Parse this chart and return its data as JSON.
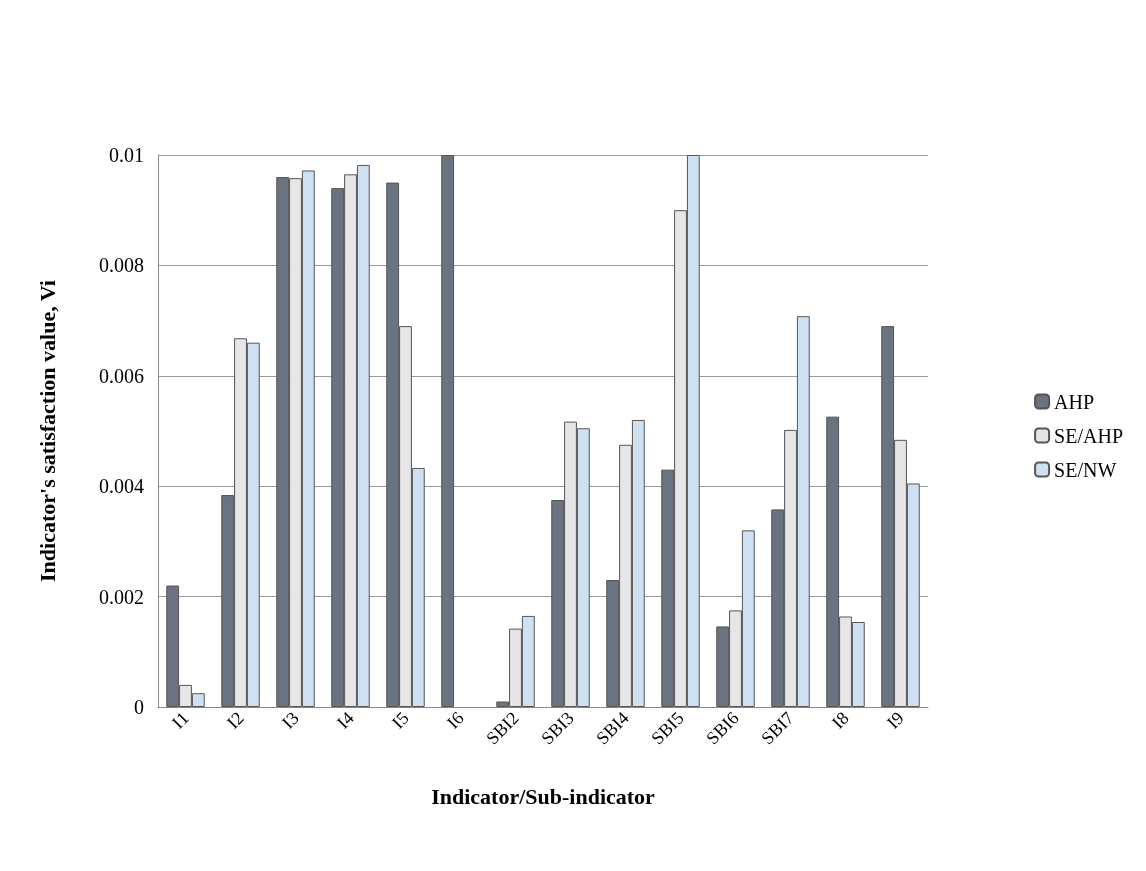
{
  "chart_data": {
    "type": "bar",
    "xlabel": "Indicator/Sub-indicator",
    "ylabel": "Indicator's satisfaction value, Vi",
    "categories": [
      "I1",
      "I2",
      "I3",
      "I4",
      "I5",
      "I6",
      "SBI2",
      "SBI3",
      "SBI4",
      "SBI5",
      "SBI6",
      "SBI7",
      "I8",
      "I9"
    ],
    "series": [
      {
        "name": "AHP",
        "color": "#6b7380",
        "values": [
          0.0022,
          0.00384,
          0.0096,
          0.0094,
          0.0095,
          0.01,
          0.0001,
          0.00375,
          0.0023,
          0.0043,
          0.00146,
          0.00358,
          0.00526,
          0.0069
        ]
      },
      {
        "name": "SE/AHP",
        "color": "#e6e6e6",
        "values": [
          0.0004,
          0.00668,
          0.00958,
          0.00965,
          0.0069,
          null,
          0.00142,
          0.00517,
          0.00475,
          0.009,
          0.00175,
          0.00502,
          0.00164,
          0.00484
        ]
      },
      {
        "name": "SE/NW",
        "color": "#cfe0f3",
        "values": [
          0.00025,
          0.0066,
          0.00972,
          0.00982,
          0.00433,
          null,
          0.00165,
          0.00505,
          0.0052,
          0.01,
          0.0032,
          0.00708,
          0.00154,
          0.00405
        ]
      }
    ],
    "ylim": [
      0,
      0.01
    ],
    "yticks": [
      0,
      0.002,
      0.004,
      0.006,
      0.008,
      0.01
    ],
    "grid": "y",
    "legend": "right"
  }
}
